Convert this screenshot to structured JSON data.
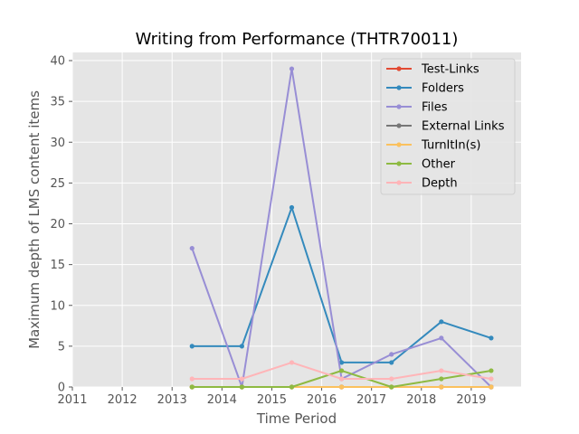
{
  "chart_data": {
    "type": "line",
    "title": "Writing from Performance (THTR70011)",
    "xlabel": "Time Period",
    "ylabel": "Maximum depth of LMS content items",
    "xlim": [
      2011,
      2020
    ],
    "ylim": [
      0,
      41
    ],
    "xticks": [
      "2011",
      "2012",
      "2013",
      "2014",
      "2015",
      "2016",
      "2017",
      "2018",
      "2019"
    ],
    "yticks": [
      "0",
      "5",
      "10",
      "15",
      "20",
      "25",
      "30",
      "35",
      "40"
    ],
    "grid": true,
    "legend_position": "top-right",
    "x": [
      2013.4,
      2014.4,
      2015.4,
      2016.4,
      2017.4,
      2018.4,
      2019.4
    ],
    "series": [
      {
        "name": "Test-Links",
        "color": "#e24a33",
        "values": [
          0,
          0,
          0,
          0,
          0,
          0,
          0
        ]
      },
      {
        "name": "Folders",
        "color": "#348abd",
        "values": [
          5,
          5,
          22,
          3,
          3,
          8,
          6
        ]
      },
      {
        "name": "Files",
        "color": "#988ed5",
        "values": [
          17,
          0,
          39,
          1,
          4,
          6,
          0
        ]
      },
      {
        "name": "External Links",
        "color": "#777777",
        "values": [
          0,
          0,
          0,
          0,
          0,
          0,
          0
        ]
      },
      {
        "name": "TurnItIn(s)",
        "color": "#fbc15e",
        "values": [
          0,
          0,
          0,
          0,
          0,
          0,
          0
        ]
      },
      {
        "name": "Other",
        "color": "#8eba42",
        "values": [
          0,
          0,
          0,
          2,
          0,
          1,
          2
        ]
      },
      {
        "name": "Depth",
        "color": "#ffb5b8",
        "values": [
          1,
          1,
          3,
          1,
          1,
          2,
          1
        ]
      }
    ]
  }
}
